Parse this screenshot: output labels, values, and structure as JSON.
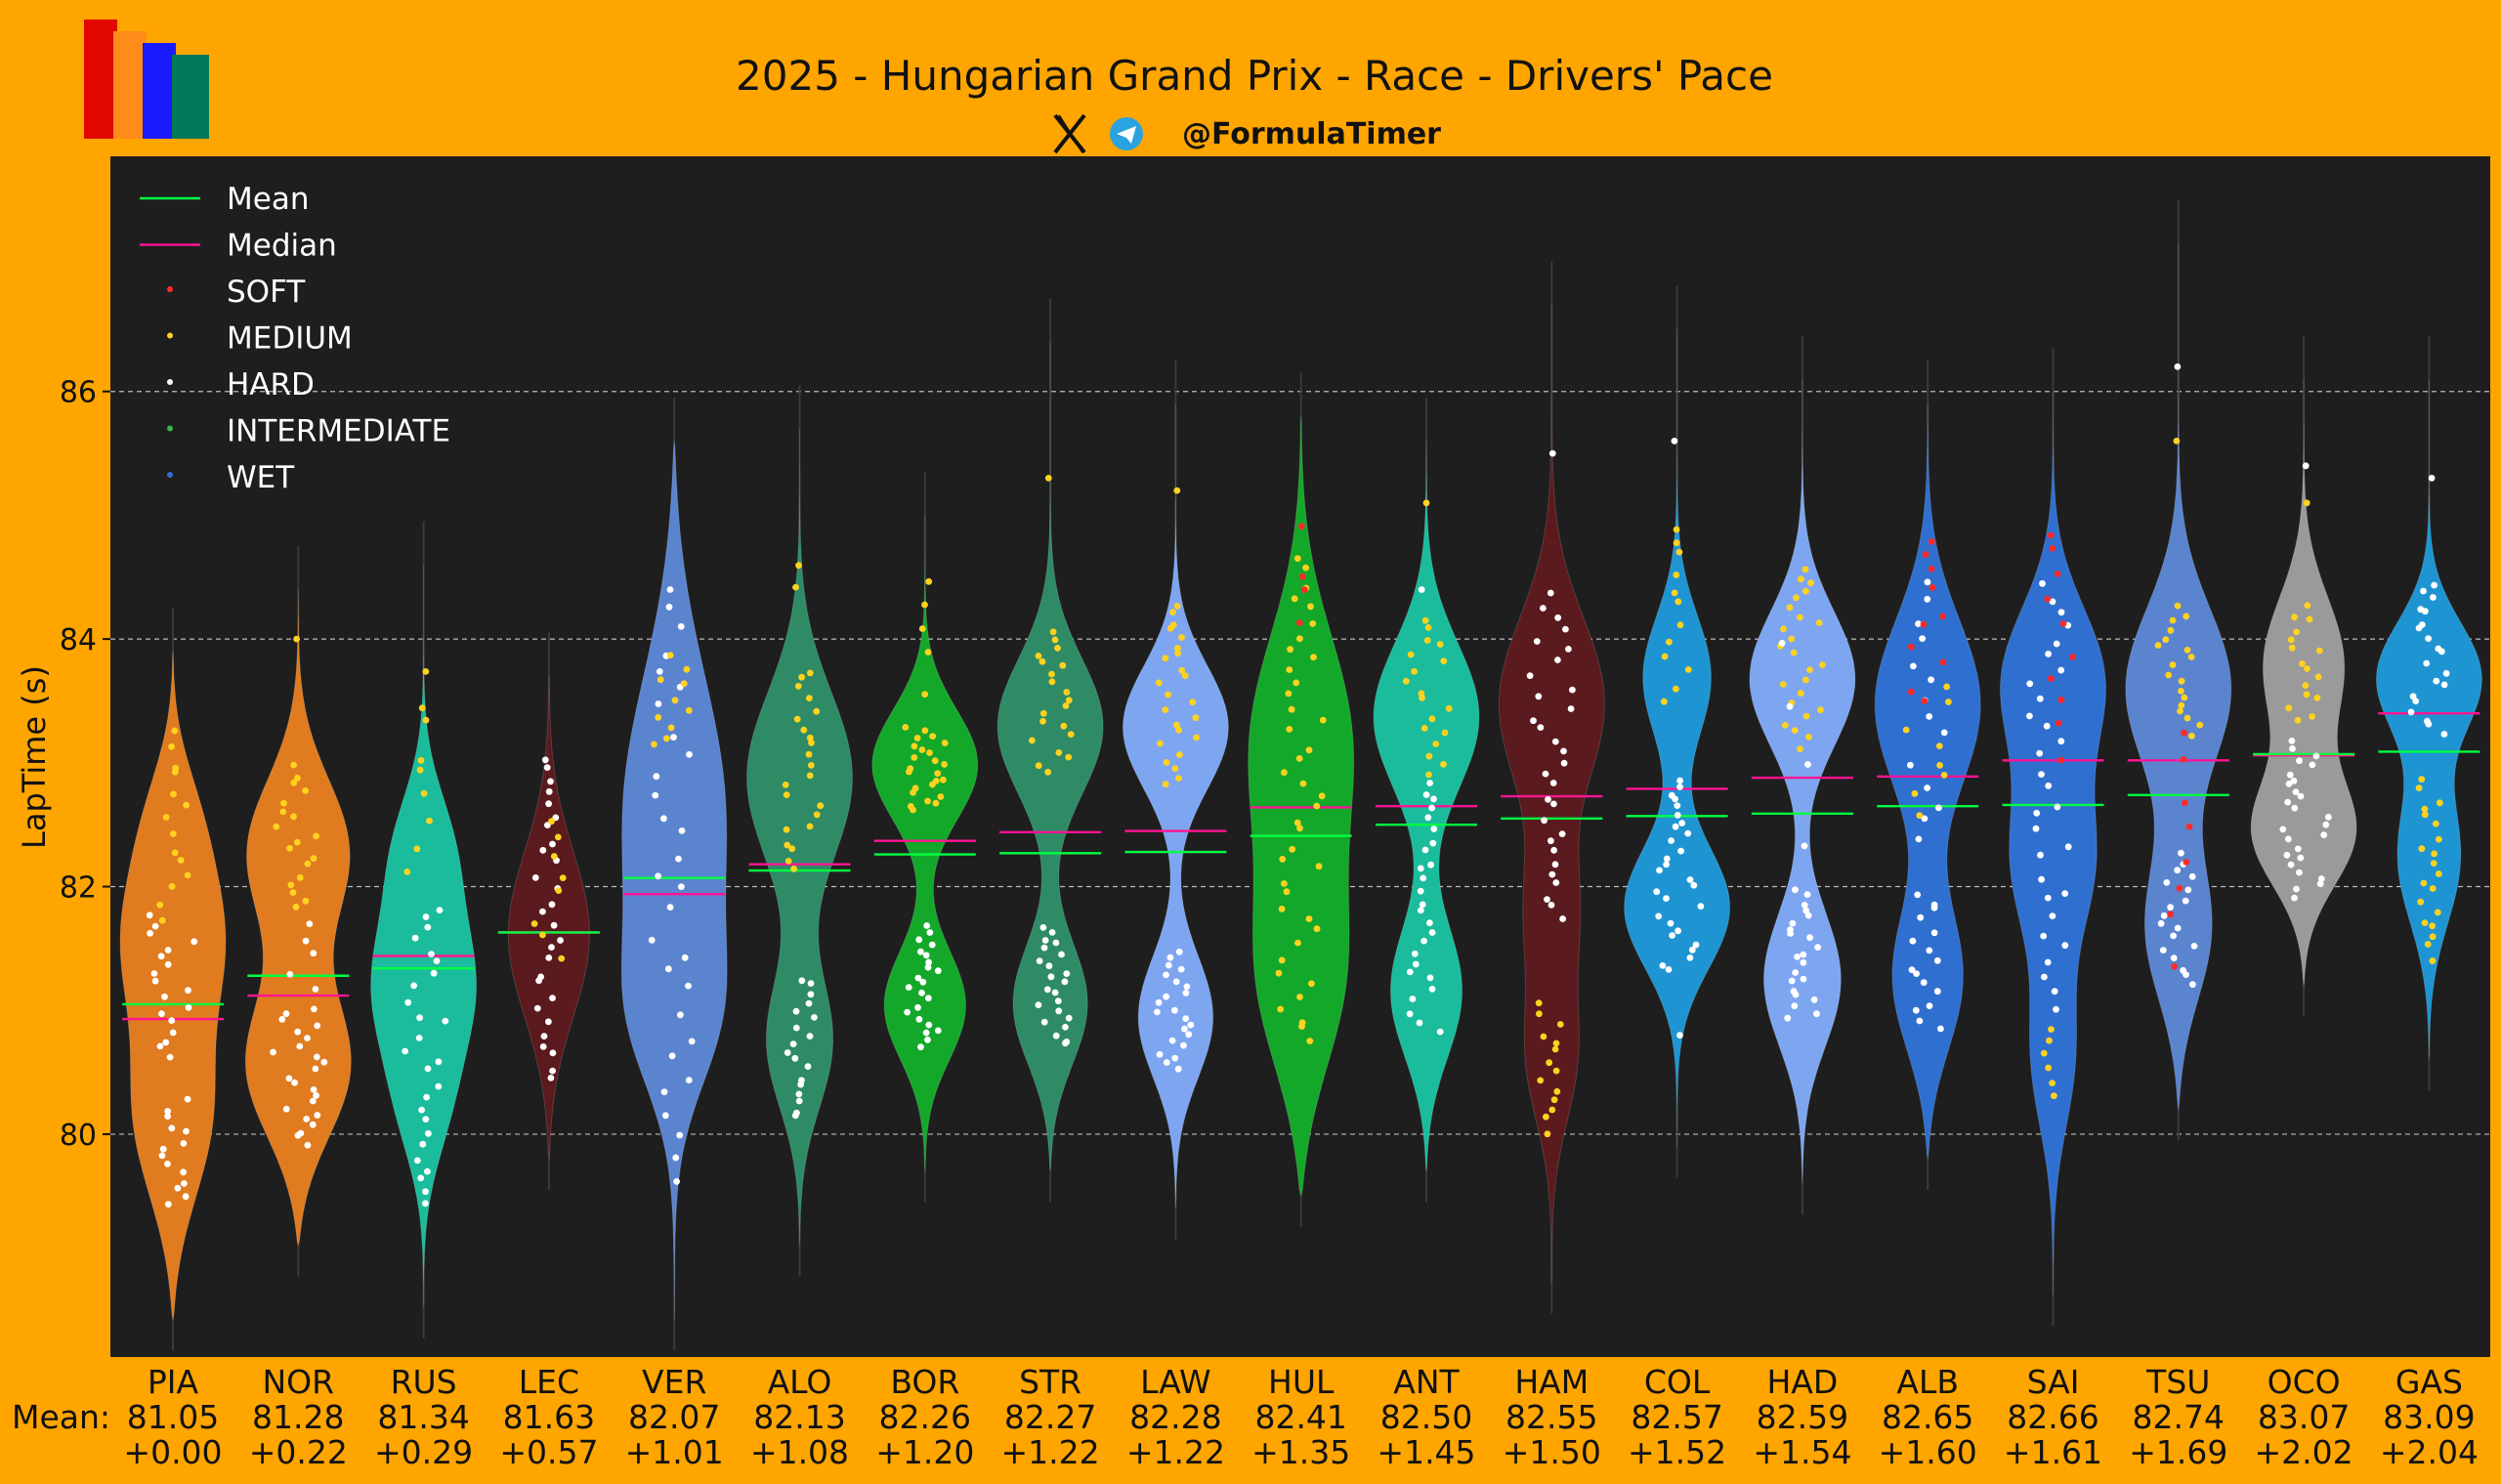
{
  "header": {
    "title": "2025 - Hungarian Grand Prix - Race - Drivers' Pace",
    "handle": "@FormulaTimer",
    "x_icon": "x-logo-icon",
    "telegram_icon": "telegram-icon",
    "logo_colors": [
      "#e10600",
      "#ff8c1a",
      "#1a1aff",
      "#00785a"
    ]
  },
  "colors": {
    "background": "#FFA500",
    "plot_bg": "#1e1e1e",
    "mean_line": "#00ff40",
    "median_line": "#ff1493",
    "soft": "#ff2a2a",
    "medium": "#ffd21f",
    "hard": "#ffffff",
    "intermediate": "#39b54a",
    "wet": "#2f6fd6"
  },
  "chart_data": {
    "type": "violin",
    "title": "2025 - Hungarian Grand Prix - Race - Drivers' Pace",
    "ylabel": "LapTime (s)",
    "xlabel": "",
    "ylim": [
      78.2,
      87.9
    ],
    "yticks": [
      80,
      82,
      84,
      86
    ],
    "grid": "horizontal dashed",
    "legend_position": "top-left",
    "legend": [
      {
        "label": "Mean",
        "kind": "line",
        "color": "#00ff40"
      },
      {
        "label": "Median",
        "kind": "line",
        "color": "#ff1493"
      },
      {
        "label": "SOFT",
        "kind": "dot",
        "color": "#ff2a2a"
      },
      {
        "label": "MEDIUM",
        "kind": "dot",
        "color": "#ffd21f"
      },
      {
        "label": "HARD",
        "kind": "dot",
        "color": "#ffffff"
      },
      {
        "label": "INTERMEDIATE",
        "kind": "dot",
        "color": "#39b54a"
      },
      {
        "label": "WET",
        "kind": "dot",
        "color": "#2f6fd6"
      }
    ],
    "mean_row_label": "Mean:",
    "drivers": [
      {
        "name": "PIA",
        "mean": 81.05,
        "median": 80.93,
        "gap": "+0.00",
        "mean_label": "81.05",
        "color": "#E07B1F",
        "min": 78.5,
        "max": 83.9,
        "width": 0.78,
        "modes": [
          {
            "c": 80.1,
            "s": 0.7,
            "w": 0.9
          },
          {
            "c": 81.6,
            "s": 0.6,
            "w": 1.0
          },
          {
            "c": 82.6,
            "s": 0.5,
            "w": 0.5
          }
        ],
        "clusters": [
          {
            "t": "hard",
            "lo": 79.4,
            "hi": 80.3,
            "n": 14
          },
          {
            "t": "hard",
            "lo": 80.6,
            "hi": 81.8,
            "n": 18
          },
          {
            "t": "medium",
            "lo": 81.7,
            "hi": 83.3,
            "n": 14
          }
        ]
      },
      {
        "name": "NOR",
        "mean": 81.28,
        "median": 81.12,
        "gap": "+0.22",
        "mean_label": "81.28",
        "color": "#E07B1F",
        "min": 79.1,
        "max": 84.4,
        "width": 0.78,
        "modes": [
          {
            "c": 80.5,
            "s": 0.6,
            "w": 1.0
          },
          {
            "c": 82.3,
            "s": 0.6,
            "w": 0.9
          }
        ],
        "clusters": [
          {
            "t": "hard",
            "lo": 79.9,
            "hi": 81.0,
            "n": 22
          },
          {
            "t": "medium",
            "lo": 81.8,
            "hi": 83.0,
            "n": 18
          },
          {
            "t": "hard",
            "lo": 81.0,
            "hi": 81.8,
            "n": 6
          },
          {
            "t": "medium",
            "lo": 84.0,
            "hi": 84.0,
            "n": 1
          }
        ]
      },
      {
        "name": "RUS",
        "mean": 81.34,
        "median": 81.44,
        "gap": "+0.29",
        "mean_label": "81.34",
        "color": "#1ABC9C",
        "min": 78.6,
        "max": 84.6,
        "width": 0.78,
        "modes": [
          {
            "c": 81.2,
            "s": 0.55,
            "w": 1.0
          },
          {
            "c": 80.2,
            "s": 0.5,
            "w": 0.5
          },
          {
            "c": 82.3,
            "s": 0.5,
            "w": 0.6
          }
        ],
        "clusters": [
          {
            "t": "hard",
            "lo": 79.4,
            "hi": 81.9,
            "n": 26
          },
          {
            "t": "medium",
            "lo": 82.0,
            "hi": 83.8,
            "n": 9
          }
        ]
      },
      {
        "name": "LEC",
        "mean": 81.63,
        "median": 81.63,
        "gap": "+0.57",
        "mean_label": "81.63",
        "color": "#5A1A1E",
        "min": 79.8,
        "max": 83.7,
        "width": 0.6,
        "modes": [
          {
            "c": 81.6,
            "s": 0.7,
            "w": 1.0
          }
        ],
        "clusters": [
          {
            "t": "hard",
            "lo": 80.4,
            "hi": 83.1,
            "n": 28
          },
          {
            "t": "medium",
            "lo": 81.4,
            "hi": 82.6,
            "n": 8
          }
        ]
      },
      {
        "name": "VER",
        "mean": 82.07,
        "median": 81.94,
        "gap": "+1.01",
        "mean_label": "82.07",
        "color": "#5B84CF",
        "min": 78.5,
        "max": 85.6,
        "width": 0.78,
        "modes": [
          {
            "c": 82.6,
            "s": 1.2,
            "w": 1.0
          },
          {
            "c": 80.9,
            "s": 0.6,
            "w": 0.6
          }
        ],
        "clusters": [
          {
            "t": "hard",
            "lo": 79.6,
            "hi": 84.5,
            "n": 30
          },
          {
            "t": "medium",
            "lo": 83.1,
            "hi": 83.9,
            "n": 10
          }
        ]
      },
      {
        "name": "ALO",
        "mean": 82.13,
        "median": 82.18,
        "gap": "+1.08",
        "mean_label": "82.13",
        "color": "#2E8B66",
        "min": 79.1,
        "max": 85.7,
        "width": 0.78,
        "modes": [
          {
            "c": 80.7,
            "s": 0.55,
            "w": 0.7
          },
          {
            "c": 82.9,
            "s": 0.7,
            "w": 1.0
          }
        ],
        "clusters": [
          {
            "t": "hard",
            "lo": 80.1,
            "hi": 81.3,
            "n": 18
          },
          {
            "t": "medium",
            "lo": 82.1,
            "hi": 83.8,
            "n": 22
          },
          {
            "t": "medium",
            "lo": 84.4,
            "hi": 84.7,
            "n": 2
          }
        ]
      },
      {
        "name": "BOR",
        "mean": 82.26,
        "median": 82.37,
        "gap": "+1.20",
        "mean_label": "82.26",
        "color": "#14A82A",
        "min": 79.7,
        "max": 85.0,
        "width": 0.78,
        "modes": [
          {
            "c": 81.0,
            "s": 0.45,
            "w": 0.85
          },
          {
            "c": 83.0,
            "s": 0.45,
            "w": 1.0
          }
        ],
        "clusters": [
          {
            "t": "hard",
            "lo": 80.7,
            "hi": 81.7,
            "n": 22
          },
          {
            "t": "medium",
            "lo": 82.6,
            "hi": 83.3,
            "n": 24
          },
          {
            "t": "medium",
            "lo": 83.5,
            "hi": 84.6,
            "n": 5
          }
        ]
      },
      {
        "name": "STR",
        "mean": 82.27,
        "median": 82.44,
        "gap": "+1.22",
        "mean_label": "82.27",
        "color": "#2E8B66",
        "min": 79.7,
        "max": 86.4,
        "width": 0.78,
        "modes": [
          {
            "c": 81.0,
            "s": 0.5,
            "w": 0.85
          },
          {
            "c": 83.3,
            "s": 0.55,
            "w": 1.0
          }
        ],
        "clusters": [
          {
            "t": "hard",
            "lo": 80.7,
            "hi": 81.7,
            "n": 22
          },
          {
            "t": "medium",
            "lo": 82.9,
            "hi": 84.1,
            "n": 20
          },
          {
            "t": "medium",
            "lo": 85.3,
            "hi": 85.3,
            "n": 1
          }
        ]
      },
      {
        "name": "LAW",
        "mean": 82.28,
        "median": 82.45,
        "gap": "+1.22",
        "mean_label": "82.28",
        "color": "#7EA6F0",
        "min": 79.4,
        "max": 85.9,
        "width": 0.78,
        "modes": [
          {
            "c": 80.9,
            "s": 0.5,
            "w": 0.8
          },
          {
            "c": 83.3,
            "s": 0.5,
            "w": 1.0
          }
        ],
        "clusters": [
          {
            "t": "hard",
            "lo": 80.5,
            "hi": 81.5,
            "n": 22
          },
          {
            "t": "medium",
            "lo": 82.8,
            "hi": 84.3,
            "n": 24
          },
          {
            "t": "medium",
            "lo": 85.2,
            "hi": 85.2,
            "n": 1
          }
        ]
      },
      {
        "name": "HUL",
        "mean": 82.41,
        "median": 82.64,
        "gap": "+1.35",
        "mean_label": "82.41",
        "color": "#14A82A",
        "min": 79.5,
        "max": 85.8,
        "width": 0.78,
        "modes": [
          {
            "c": 81.2,
            "s": 0.8,
            "w": 0.9
          },
          {
            "c": 83.2,
            "s": 0.9,
            "w": 1.0
          }
        ],
        "clusters": [
          {
            "t": "medium",
            "lo": 80.7,
            "hi": 84.7,
            "n": 40
          },
          {
            "t": "soft",
            "lo": 84.0,
            "hi": 85.0,
            "n": 4
          }
        ]
      },
      {
        "name": "ANT",
        "mean": 82.5,
        "median": 82.65,
        "gap": "+1.45",
        "mean_label": "82.50",
        "color": "#1ABC9C",
        "min": 79.7,
        "max": 85.6,
        "width": 0.78,
        "modes": [
          {
            "c": 81.1,
            "s": 0.55,
            "w": 0.75
          },
          {
            "c": 83.4,
            "s": 0.6,
            "w": 1.0
          }
        ],
        "clusters": [
          {
            "t": "hard",
            "lo": 80.8,
            "hi": 82.9,
            "n": 26
          },
          {
            "t": "medium",
            "lo": 82.9,
            "hi": 84.2,
            "n": 18
          },
          {
            "t": "medium",
            "lo": 85.1,
            "hi": 85.1,
            "n": 1
          },
          {
            "t": "hard",
            "lo": 84.4,
            "hi": 84.4,
            "n": 1
          }
        ]
      },
      {
        "name": "HAM",
        "mean": 82.55,
        "median": 82.73,
        "gap": "+1.50",
        "mean_label": "82.55",
        "color": "#5A1A1E",
        "min": 78.8,
        "max": 86.7,
        "width": 0.78,
        "modes": [
          {
            "c": 80.6,
            "s": 0.55,
            "w": 0.55
          },
          {
            "c": 83.5,
            "s": 0.7,
            "w": 1.0
          },
          {
            "c": 81.8,
            "s": 0.5,
            "w": 0.45
          }
        ],
        "clusters": [
          {
            "t": "medium",
            "lo": 80.0,
            "hi": 81.1,
            "n": 14
          },
          {
            "t": "hard",
            "lo": 81.7,
            "hi": 84.4,
            "n": 30
          },
          {
            "t": "hard",
            "lo": 85.5,
            "hi": 85.5,
            "n": 1
          }
        ]
      },
      {
        "name": "COL",
        "mean": 82.57,
        "median": 82.79,
        "gap": "+1.52",
        "mean_label": "82.57",
        "color": "#1E95D2",
        "min": 79.9,
        "max": 86.5,
        "width": 0.78,
        "modes": [
          {
            "c": 81.8,
            "s": 0.5,
            "w": 1.0
          },
          {
            "c": 83.7,
            "s": 0.5,
            "w": 0.6
          }
        ],
        "clusters": [
          {
            "t": "hard",
            "lo": 81.3,
            "hi": 82.9,
            "n": 28
          },
          {
            "t": "medium",
            "lo": 83.4,
            "hi": 85.0,
            "n": 12
          },
          {
            "t": "hard",
            "lo": 85.6,
            "hi": 85.6,
            "n": 1
          },
          {
            "t": "hard",
            "lo": 80.8,
            "hi": 80.8,
            "n": 1
          }
        ]
      },
      {
        "name": "HAD",
        "mean": 82.59,
        "median": 82.88,
        "gap": "+1.54",
        "mean_label": "82.59",
        "color": "#7EA6F0",
        "min": 79.6,
        "max": 86.1,
        "width": 0.78,
        "modes": [
          {
            "c": 81.2,
            "s": 0.55,
            "w": 0.8
          },
          {
            "c": 83.7,
            "s": 0.55,
            "w": 1.0
          }
        ],
        "clusters": [
          {
            "t": "hard",
            "lo": 80.9,
            "hi": 82.0,
            "n": 22
          },
          {
            "t": "medium",
            "lo": 83.1,
            "hi": 84.6,
            "n": 24
          },
          {
            "t": "hard",
            "lo": 82.2,
            "hi": 84.3,
            "n": 4
          }
        ]
      },
      {
        "name": "ALB",
        "mean": 82.65,
        "median": 82.89,
        "gap": "+1.60",
        "mean_label": "82.65",
        "color": "#2F6FD0",
        "min": 79.8,
        "max": 85.9,
        "width": 0.78,
        "modes": [
          {
            "c": 81.2,
            "s": 0.6,
            "w": 0.75
          },
          {
            "c": 83.5,
            "s": 0.7,
            "w": 1.0
          }
        ],
        "clusters": [
          {
            "t": "hard",
            "lo": 80.8,
            "hi": 82.0,
            "n": 16
          },
          {
            "t": "hard",
            "lo": 82.3,
            "hi": 84.6,
            "n": 14
          },
          {
            "t": "medium",
            "lo": 82.5,
            "hi": 83.7,
            "n": 8
          },
          {
            "t": "soft",
            "lo": 83.4,
            "hi": 84.9,
            "n": 10
          }
        ]
      },
      {
        "name": "SAI",
        "mean": 82.66,
        "median": 83.02,
        "gap": "+1.61",
        "mean_label": "82.66",
        "color": "#2F6FD0",
        "min": 78.7,
        "max": 86.0,
        "width": 0.78,
        "modes": [
          {
            "c": 80.6,
            "s": 0.6,
            "w": 0.45
          },
          {
            "c": 82.2,
            "s": 0.6,
            "w": 0.75
          },
          {
            "c": 83.7,
            "s": 0.6,
            "w": 1.0
          }
        ],
        "clusters": [
          {
            "t": "medium",
            "lo": 80.3,
            "hi": 80.9,
            "n": 6
          },
          {
            "t": "hard",
            "lo": 81.0,
            "hi": 84.5,
            "n": 30
          },
          {
            "t": "soft",
            "lo": 83.0,
            "hi": 85.0,
            "n": 10
          },
          {
            "t": "wet",
            "lo": 79.8,
            "hi": 79.8,
            "n": 1
          }
        ]
      },
      {
        "name": "TSU",
        "mean": 82.74,
        "median": 83.02,
        "gap": "+1.69",
        "mean_label": "82.74",
        "color": "#5B84CF",
        "min": 80.2,
        "max": 87.2,
        "width": 0.78,
        "modes": [
          {
            "c": 81.6,
            "s": 0.6,
            "w": 0.75
          },
          {
            "c": 83.6,
            "s": 0.65,
            "w": 1.0
          }
        ],
        "clusters": [
          {
            "t": "hard",
            "lo": 81.2,
            "hi": 82.3,
            "n": 18
          },
          {
            "t": "medium",
            "lo": 83.2,
            "hi": 84.3,
            "n": 18
          },
          {
            "t": "soft",
            "lo": 81.3,
            "hi": 83.5,
            "n": 8
          },
          {
            "t": "hard",
            "lo": 86.2,
            "hi": 86.2,
            "n": 1
          },
          {
            "t": "medium",
            "lo": 85.6,
            "hi": 85.6,
            "n": 1
          }
        ]
      },
      {
        "name": "OCO",
        "mean": 83.07,
        "median": 83.06,
        "gap": "+2.02",
        "mean_label": "83.07",
        "color": "#9A9A9A",
        "min": 81.2,
        "max": 86.1,
        "width": 0.78,
        "modes": [
          {
            "c": 82.4,
            "s": 0.45,
            "w": 1.0
          },
          {
            "c": 83.8,
            "s": 0.55,
            "w": 0.7
          }
        ],
        "clusters": [
          {
            "t": "hard",
            "lo": 81.9,
            "hi": 83.2,
            "n": 26
          },
          {
            "t": "medium",
            "lo": 83.3,
            "hi": 84.3,
            "n": 16
          },
          {
            "t": "medium",
            "lo": 85.1,
            "hi": 85.1,
            "n": 1
          },
          {
            "t": "hard",
            "lo": 85.4,
            "hi": 85.4,
            "n": 1
          }
        ]
      },
      {
        "name": "GAS",
        "mean": 83.09,
        "median": 83.4,
        "gap": "+2.04",
        "mean_label": "83.09",
        "color": "#1E95D2",
        "min": 80.6,
        "max": 86.1,
        "width": 0.78,
        "modes": [
          {
            "c": 82.2,
            "s": 0.55,
            "w": 0.65
          },
          {
            "c": 83.7,
            "s": 0.45,
            "w": 1.0
          }
        ],
        "clusters": [
          {
            "t": "medium",
            "lo": 81.4,
            "hi": 82.9,
            "n": 20
          },
          {
            "t": "hard",
            "lo": 83.2,
            "hi": 84.5,
            "n": 20
          },
          {
            "t": "hard",
            "lo": 85.3,
            "hi": 85.3,
            "n": 1
          }
        ]
      }
    ]
  }
}
